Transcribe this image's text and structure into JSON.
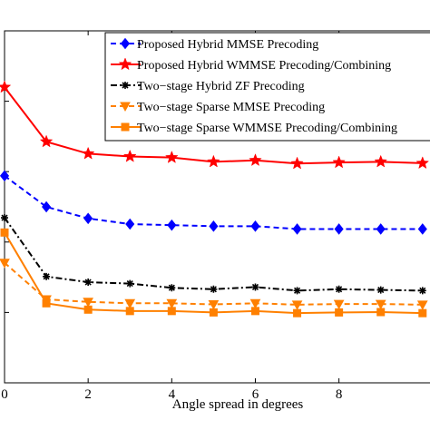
{
  "chart_data": {
    "type": "line",
    "title": "",
    "xlabel": "Angle spread in degrees",
    "ylabel": "",
    "xlim": [
      0,
      10
    ],
    "ylim": [
      0,
      1
    ],
    "x": [
      0,
      1,
      2,
      3,
      4,
      5,
      6,
      7,
      8,
      9,
      10
    ],
    "x_ticks": [
      "0",
      "2",
      "4",
      "6",
      "8"
    ],
    "grid": false,
    "legend_position": "top-right",
    "series": [
      {
        "name": "Proposed Hybrid MMSE Precoding",
        "color": "#0000ff",
        "line": "dashed",
        "marker": "diamond",
        "values": [
          0.588,
          0.5,
          0.467,
          0.451,
          0.448,
          0.445,
          0.445,
          0.437,
          0.437,
          0.437,
          0.437
        ]
      },
      {
        "name": "Proposed Hybrid WMMSE Precoding/Combining",
        "color": "#ff0000",
        "line": "solid",
        "marker": "star",
        "values": [
          0.84,
          0.685,
          0.651,
          0.643,
          0.64,
          0.628,
          0.632,
          0.623,
          0.626,
          0.628,
          0.624
        ]
      },
      {
        "name": "Two−stage Hybrid ZF Precoding",
        "color": "#000000",
        "line": "dashdot",
        "marker": "asterisk",
        "values": [
          0.469,
          0.302,
          0.286,
          0.282,
          0.27,
          0.266,
          0.272,
          0.262,
          0.266,
          0.264,
          0.262
        ]
      },
      {
        "name": "Two−stage Sparse MMSE Precoding",
        "color": "#ff8000",
        "line": "dashed",
        "marker": "triangle-down",
        "values": [
          0.341,
          0.237,
          0.23,
          0.226,
          0.226,
          0.223,
          0.226,
          0.222,
          0.224,
          0.224,
          0.222
        ]
      },
      {
        "name": "Two−stage Sparse WMMSE Precoding/Combining",
        "color": "#ff8000",
        "line": "solid",
        "marker": "square",
        "values": [
          0.427,
          0.226,
          0.208,
          0.204,
          0.204,
          0.2,
          0.204,
          0.198,
          0.2,
          0.201,
          0.198
        ]
      }
    ]
  }
}
